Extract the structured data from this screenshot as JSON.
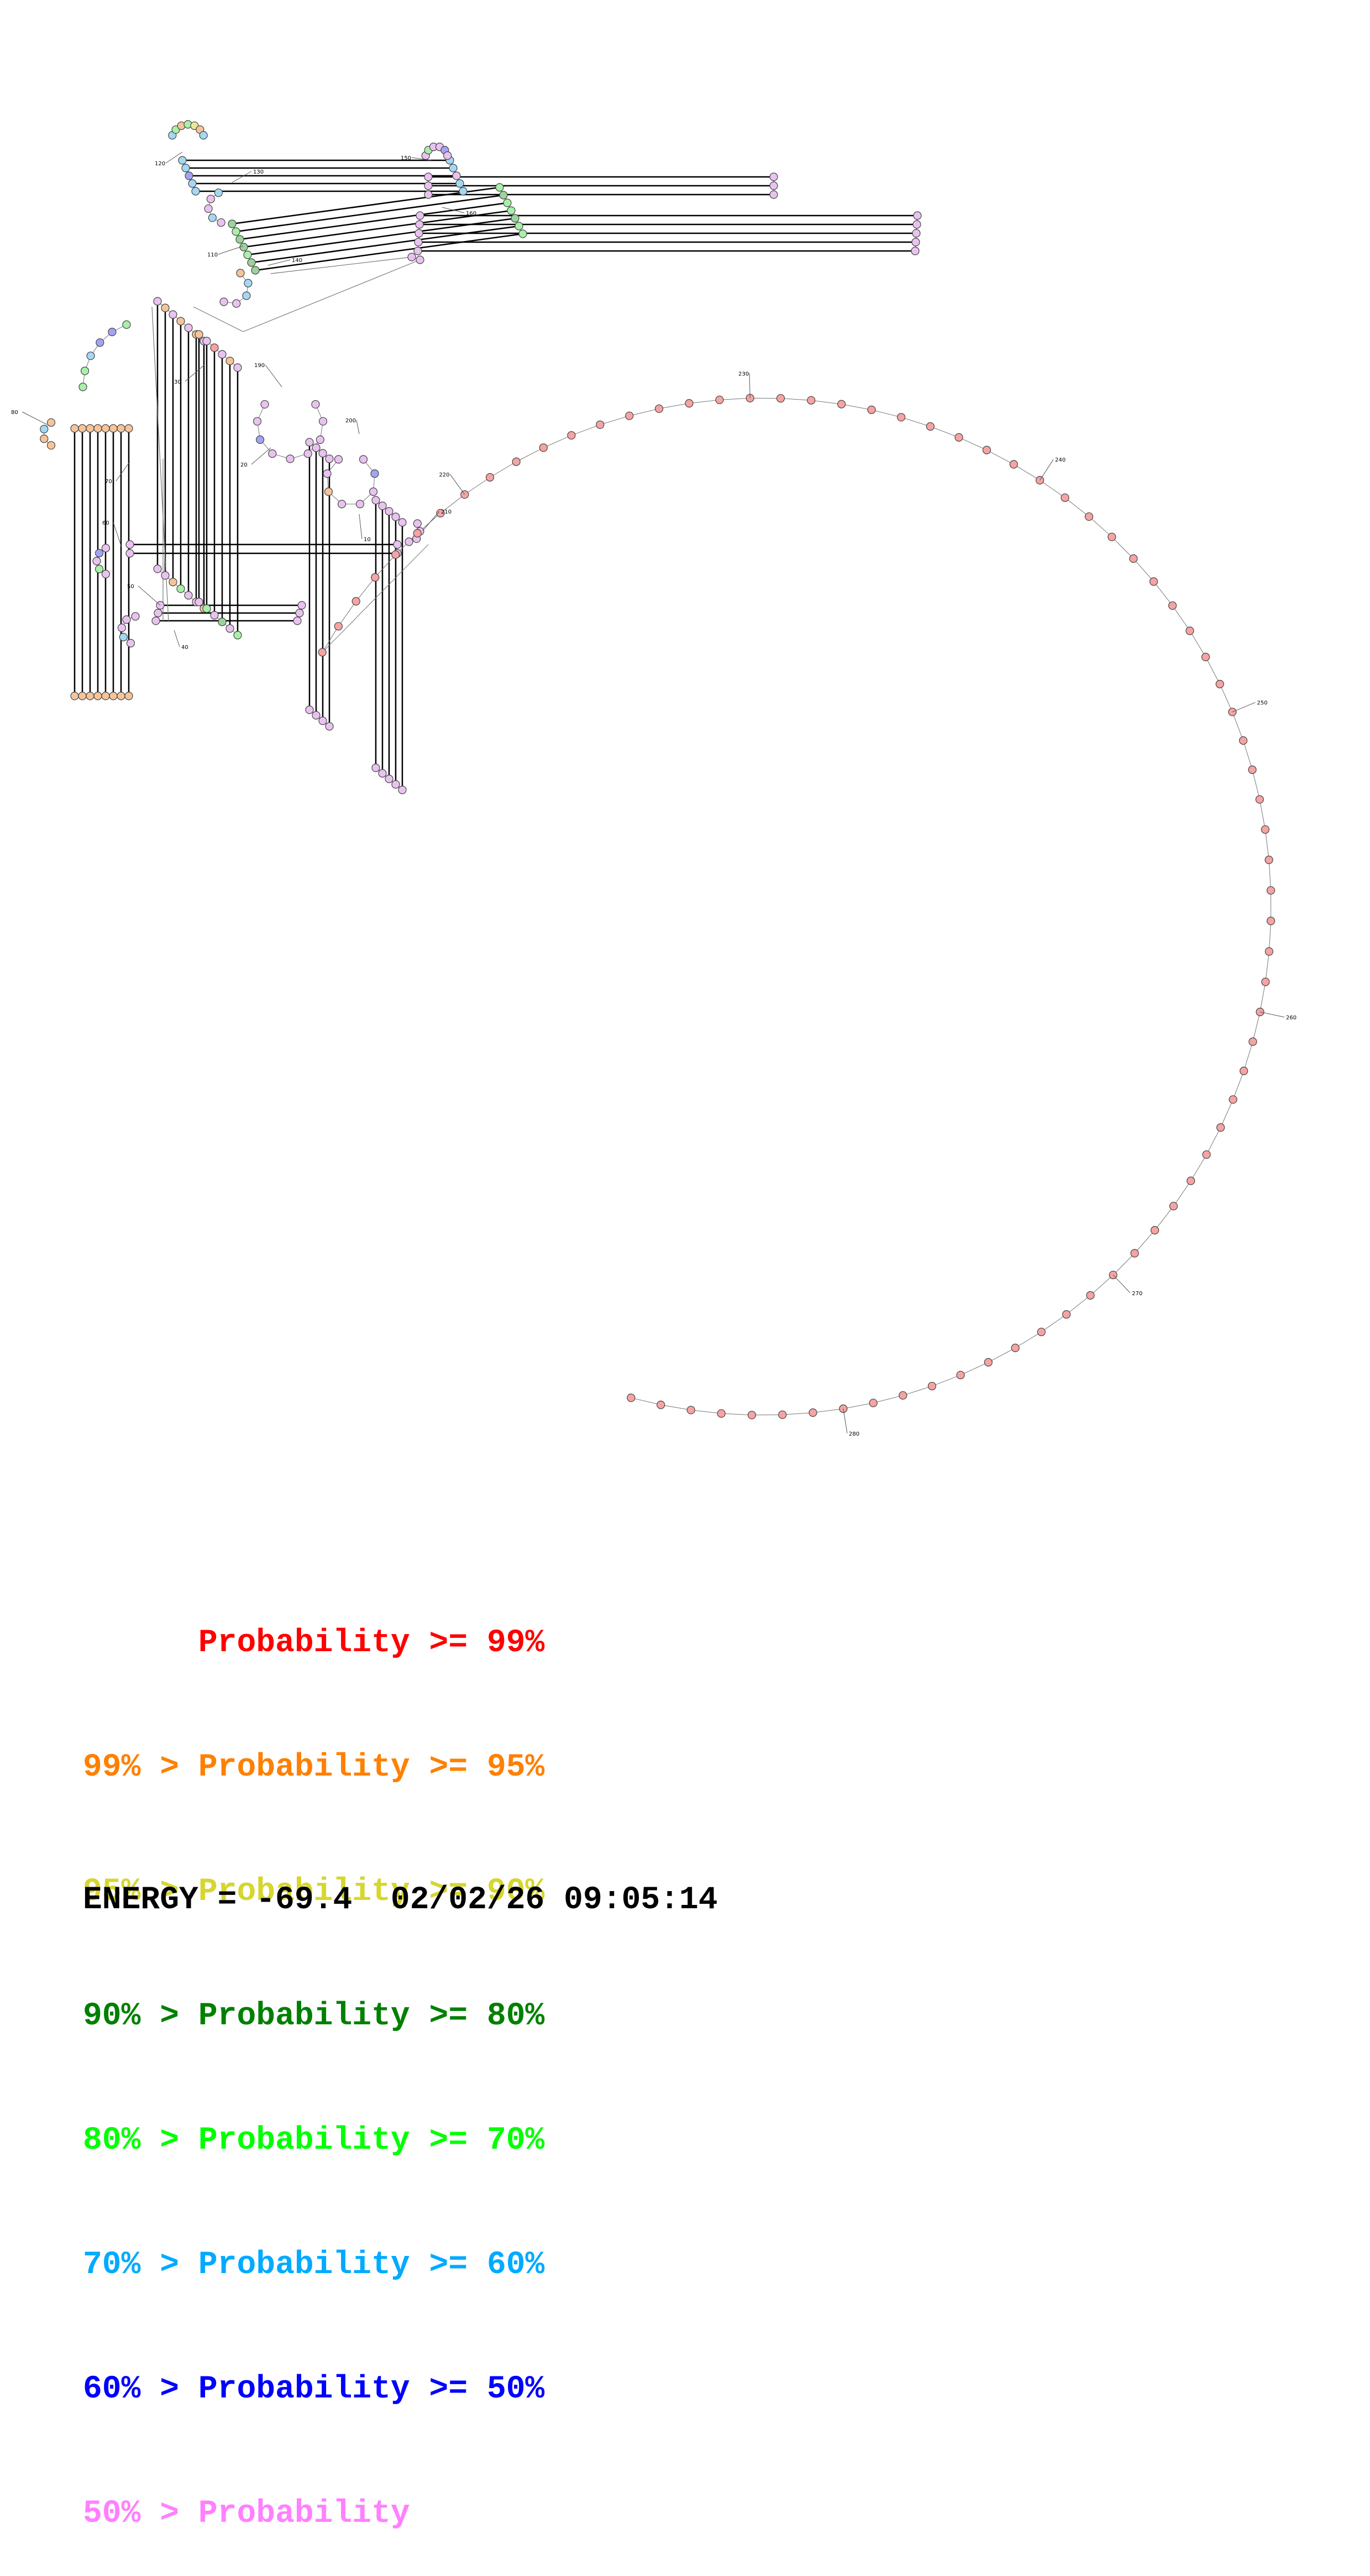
{
  "diagram": {
    "type": "rna-secondary-structure",
    "nucleotide_count": 287,
    "position_labels": [
      "10",
      "20",
      "30",
      "40",
      "50",
      "60",
      "70",
      "80",
      "110",
      "120",
      "130",
      "140",
      "150",
      "160",
      "190",
      "200",
      "210",
      "220",
      "230",
      "240",
      "250",
      "260",
      "270",
      "280"
    ]
  },
  "legend": {
    "rows": [
      {
        "left": "",
        "mid": "Probability",
        "right": ">= 99%",
        "color": "#ff0000"
      },
      {
        "left": "99% >",
        "mid": "Probability",
        "right": ">= 95%",
        "color": "#ff8000"
      },
      {
        "left": "95% >",
        "mid": "Probability",
        "right": ">= 90%",
        "color": "#d6d62e"
      },
      {
        "left": "90% >",
        "mid": "Probability",
        "right": ">= 80%",
        "color": "#008000"
      },
      {
        "left": "80% >",
        "mid": "Probability",
        "right": ">= 70%",
        "color": "#00ff00"
      },
      {
        "left": "70% >",
        "mid": "Probability",
        "right": ">= 60%",
        "color": "#00aaff"
      },
      {
        "left": "60% >",
        "mid": "Probability",
        "right": ">= 50%",
        "color": "#0000ff"
      },
      {
        "left": "50% >",
        "mid": "Probability",
        "right": "",
        "color": "#ff80ff"
      }
    ]
  },
  "footer": {
    "energy_label": "ENERGY = -69.4",
    "timestamp": "02/02/26 09:05:14"
  },
  "colors": {
    "red_fill": "#f6a3a3",
    "orange_fill": "#f5c49a",
    "yellow_fill": "#e8e89a",
    "darkgreen_fill": "#9bd39b",
    "green_fill": "#a8f0a8",
    "cyan_fill": "#a3d8f5",
    "blue_fill": "#a3a3f5",
    "pink_fill": "#e9c3f0"
  }
}
